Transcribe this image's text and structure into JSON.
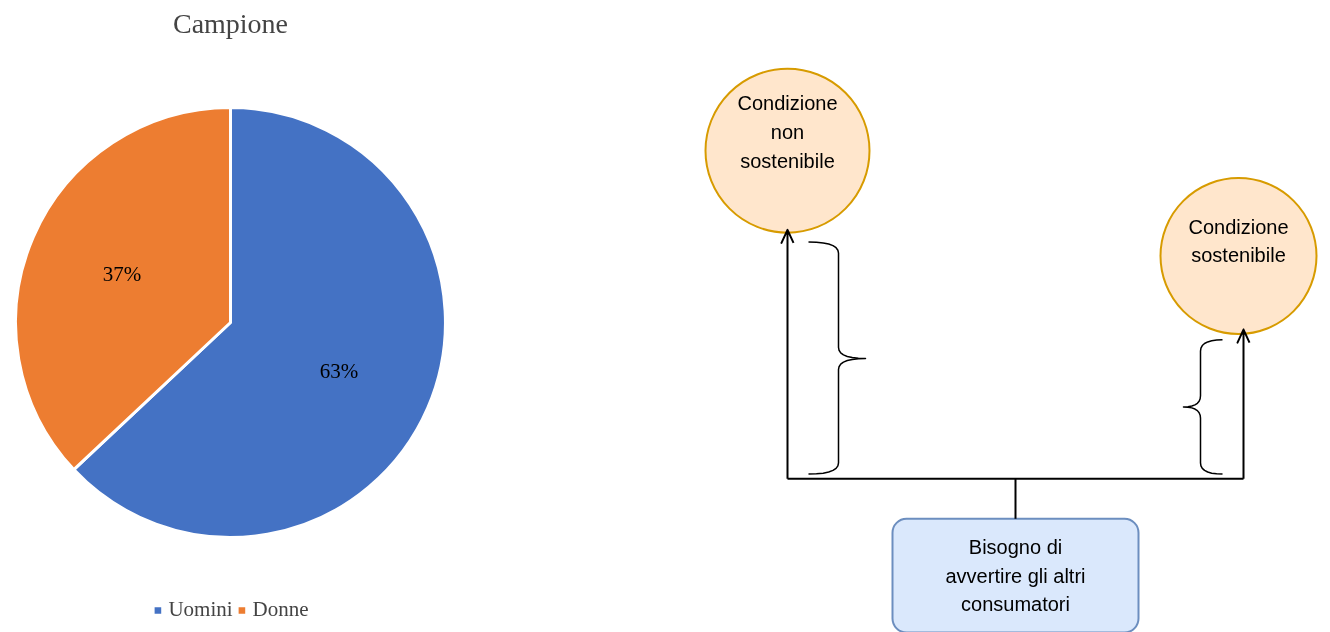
{
  "chart_data": [
    {
      "type": "pie",
      "title": "Campione",
      "categories": [
        "Uomini",
        "Donne"
      ],
      "values": [
        63,
        37
      ],
      "colors": [
        "#4472c4",
        "#ed7d31"
      ],
      "value_labels": [
        "63%",
        "37%"
      ],
      "legend": "bottom"
    },
    {
      "type": "other",
      "annotations": [
        "Condizione\nnon\nsostenibile",
        "Condizione\nsostenibile",
        "Bisogno di\navvertire gli altri\nconsumatori"
      ]
    }
  ]
}
